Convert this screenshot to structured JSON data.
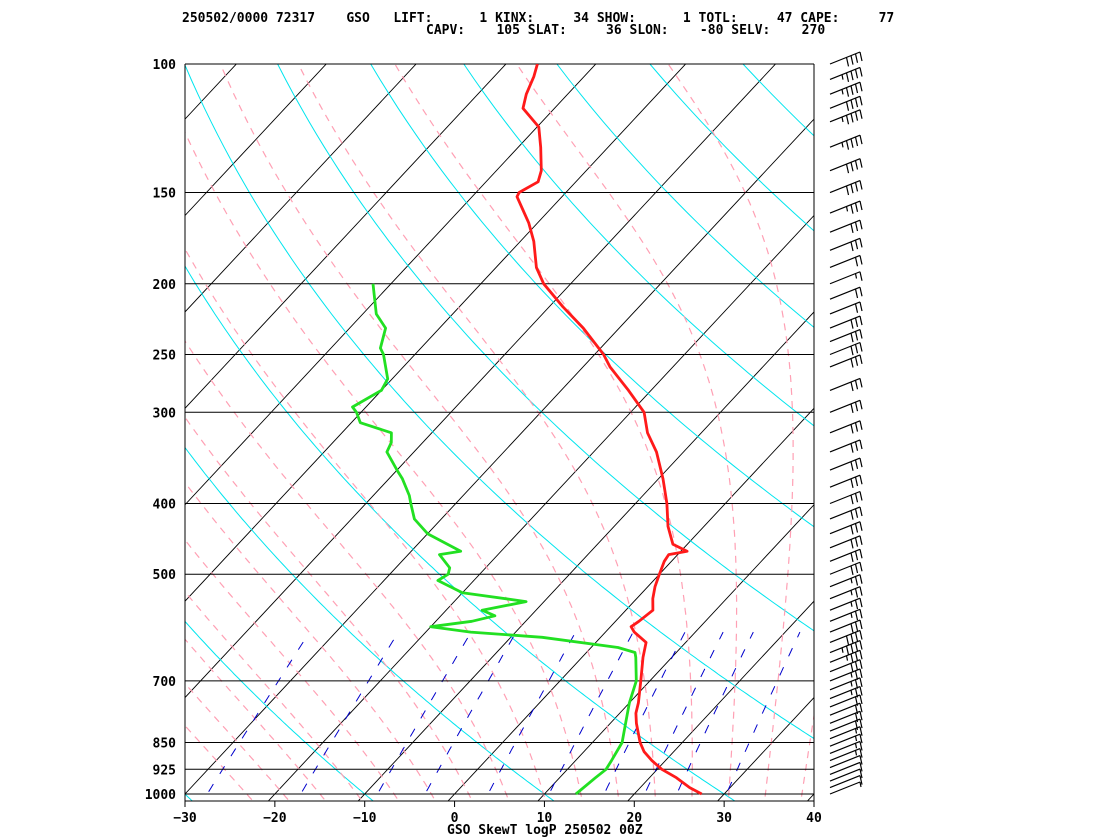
{
  "header": {
    "line1": "250502/0000 72317    GSO   LIFT:      1 KINX:     34 SHOW:      1 TOTL:     47 CAPE:     77",
    "line2": "CAPV:    105 SLAT:     36 SLON:    -80 SELV:    270"
  },
  "footer": "GSO SkewT logP 250502 00Z",
  "colors": {
    "temperature": "#ff1a1a",
    "dewpoint": "#22e022",
    "isotherm": "#000000",
    "isobar": "#000000",
    "dry_adiabat": "#00e5ee",
    "moist_adiabat": "#ffa0b4",
    "mixing_ratio": "#0000cc",
    "wind_barb": "#000000"
  },
  "chart_data": {
    "type": "skewt",
    "station": "GSO",
    "pressure_levels": [
      1000,
      925,
      850,
      700,
      500,
      400,
      300,
      250,
      200,
      150,
      100
    ],
    "pressure_tick_labels": [
      "1000",
      "925",
      "850",
      "700",
      "500",
      "400",
      "300",
      "250",
      "200",
      "150",
      "100"
    ],
    "xlim": [
      -30,
      40
    ],
    "x_ticks": [
      -30,
      -20,
      -10,
      0,
      10,
      20,
      30,
      40
    ],
    "x_tick_labels": [
      "−30",
      "−20",
      "−10",
      "0",
      "10",
      "20",
      "30",
      "40"
    ],
    "ylim": [
      1000,
      100
    ],
    "temperature": [
      [
        1000,
        27.5
      ],
      [
        980,
        25.5
      ],
      [
        950,
        23
      ],
      [
        925,
        20.5
      ],
      [
        900,
        18.5
      ],
      [
        875,
        16.7
      ],
      [
        850,
        15.3
      ],
      [
        800,
        12.9
      ],
      [
        775,
        11.8
      ],
      [
        750,
        11.0
      ],
      [
        700,
        9.0
      ],
      [
        650,
        6.8
      ],
      [
        620,
        5.6
      ],
      [
        600,
        3.2
      ],
      [
        590,
        2.3
      ],
      [
        580,
        2.6
      ],
      [
        560,
        3.0
      ],
      [
        540,
        1.8
      ],
      [
        520,
        0.8
      ],
      [
        500,
        0.0
      ],
      [
        480,
        -0.8
      ],
      [
        470,
        -1.0
      ],
      [
        465,
        0.7
      ],
      [
        455,
        -1.6
      ],
      [
        430,
        -4.0
      ],
      [
        400,
        -6.5
      ],
      [
        370,
        -9.5
      ],
      [
        340,
        -13.0
      ],
      [
        320,
        -16.0
      ],
      [
        300,
        -18.5
      ],
      [
        280,
        -22.5
      ],
      [
        260,
        -27.0
      ],
      [
        250,
        -29.0
      ],
      [
        230,
        -34.0
      ],
      [
        215,
        -38.5
      ],
      [
        200,
        -43.0
      ],
      [
        190,
        -45.5
      ],
      [
        175,
        -48.5
      ],
      [
        165,
        -51.0
      ],
      [
        160,
        -52.5
      ],
      [
        152,
        -55.0
      ],
      [
        150,
        -55.2
      ],
      [
        145,
        -54.2
      ],
      [
        140,
        -55.0
      ],
      [
        130,
        -57.5
      ],
      [
        122,
        -59.8
      ],
      [
        115,
        -63.5
      ],
      [
        110,
        -64.6
      ],
      [
        104,
        -65.6
      ],
      [
        100,
        -66.5
      ]
    ],
    "dewpoint": [
      [
        1000,
        13.5
      ],
      [
        950,
        14.0
      ],
      [
        925,
        14.3
      ],
      [
        900,
        14.0
      ],
      [
        850,
        13.3
      ],
      [
        800,
        11.7
      ],
      [
        750,
        10.0
      ],
      [
        700,
        8.5
      ],
      [
        650,
        6.0
      ],
      [
        640,
        5.4
      ],
      [
        630,
        3.0
      ],
      [
        610,
        -6.5
      ],
      [
        600,
        -15.0
      ],
      [
        590,
        -20.0
      ],
      [
        580,
        -16.0
      ],
      [
        570,
        -14.0
      ],
      [
        560,
        -16.0
      ],
      [
        545,
        -12.0
      ],
      [
        530,
        -20.0
      ],
      [
        510,
        -24.0
      ],
      [
        500,
        -23.5
      ],
      [
        490,
        -24.0
      ],
      [
        470,
        -26.5
      ],
      [
        465,
        -24.5
      ],
      [
        440,
        -30.0
      ],
      [
        420,
        -33.0
      ],
      [
        400,
        -35.0
      ],
      [
        390,
        -36.0
      ],
      [
        370,
        -38.5
      ],
      [
        360,
        -40.0
      ],
      [
        340,
        -43.0
      ],
      [
        330,
        -43.5
      ],
      [
        320,
        -44.5
      ],
      [
        310,
        -49.0
      ],
      [
        300,
        -50.5
      ],
      [
        295,
        -51.5
      ],
      [
        280,
        -50.0
      ],
      [
        270,
        -50.5
      ],
      [
        250,
        -53.5
      ],
      [
        245,
        -54.5
      ],
      [
        230,
        -56.0
      ],
      [
        220,
        -58.5
      ],
      [
        200,
        -62.0
      ]
    ],
    "wind_levels_hpa": [
      1000,
      980,
      960,
      940,
      920,
      900,
      880,
      860,
      840,
      820,
      800,
      780,
      760,
      740,
      720,
      700,
      680,
      660,
      640,
      620,
      600,
      580,
      560,
      540,
      520,
      500,
      480,
      460,
      440,
      420,
      400,
      380,
      360,
      340,
      320,
      300,
      280,
      260,
      250,
      240,
      230,
      220,
      210,
      200,
      190,
      180,
      170,
      160,
      150,
      140,
      130,
      120,
      115,
      110,
      105,
      100
    ],
    "wind_speeds_kt": [
      5,
      10,
      10,
      10,
      10,
      15,
      15,
      15,
      15,
      20,
      20,
      20,
      20,
      25,
      25,
      25,
      30,
      35,
      45,
      40,
      30,
      25,
      25,
      25,
      25,
      30,
      30,
      30,
      30,
      30,
      30,
      30,
      30,
      30,
      30,
      30,
      30,
      30,
      30,
      30,
      30,
      20,
      20,
      15,
      20,
      30,
      30,
      35,
      40,
      40,
      45,
      45,
      40,
      45,
      45,
      40
    ]
  }
}
